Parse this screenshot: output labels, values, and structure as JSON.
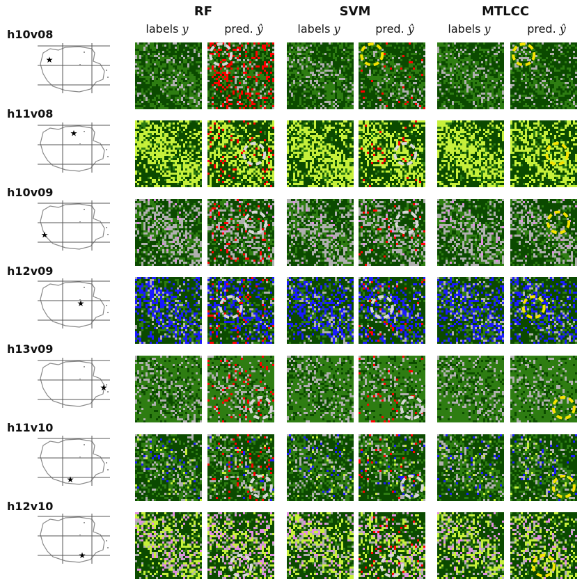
{
  "header": {
    "methods": [
      "RF",
      "SVM",
      "MTLCC"
    ],
    "col_label_y": "labels",
    "col_label_y_sym": "y",
    "col_label_pred": "pred.",
    "col_label_pred_sym": "ŷ"
  },
  "rows": [
    {
      "tile": "h10v08",
      "star": [
        0.15,
        0.32
      ],
      "circle": [
        0.2,
        0.18
      ]
    },
    {
      "tile": "h11v08",
      "star": [
        0.5,
        0.2
      ],
      "circle": [
        0.7,
        0.5
      ]
    },
    {
      "tile": "h10v09",
      "star": [
        0.08,
        0.7
      ],
      "circle": [
        0.72,
        0.35
      ]
    },
    {
      "tile": "h12v09",
      "star": [
        0.6,
        0.5
      ],
      "circle": [
        0.35,
        0.45
      ]
    },
    {
      "tile": "h13v09",
      "star": [
        0.93,
        0.6
      ],
      "circle": [
        0.8,
        0.78
      ]
    },
    {
      "tile": "h11v10",
      "star": [
        0.45,
        0.9
      ],
      "circle": [
        0.8,
        0.78
      ]
    },
    {
      "tile": "h12v10",
      "star": [
        0.62,
        0.85
      ],
      "circle": [
        0.5,
        0.8
      ]
    }
  ],
  "colors": {
    "dark_forest": "#0b4a00",
    "forest": "#2e7d12",
    "light_green": "#c6f03a",
    "gray": "#b0b0b0",
    "red": "#ff0000",
    "blue": "#1a1aff",
    "pink": "#e38de3",
    "circle_white": "#d8d8d8",
    "circle_yellow": "#f5e400"
  }
}
